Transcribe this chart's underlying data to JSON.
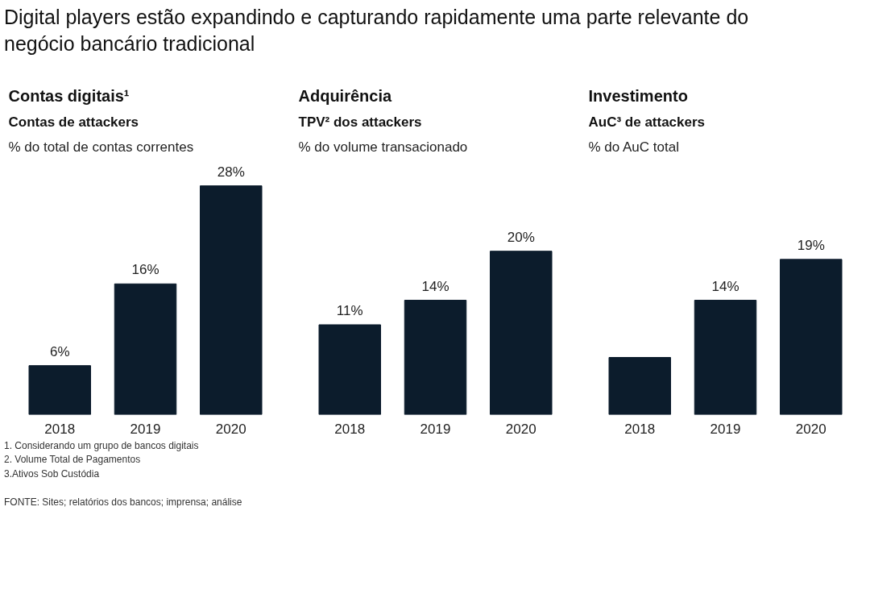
{
  "chart_data": [
    {
      "type": "bar",
      "title": "Contas digitais¹",
      "subtitle": "Contas de attackers",
      "ylabel": "% do total de contas correntes",
      "categories": [
        "2018",
        "2019",
        "2020"
      ],
      "values": [
        6,
        16,
        28
      ],
      "value_labels": [
        "6%",
        "16%",
        "28%"
      ],
      "color": "#0c1c2c",
      "grid": false,
      "annotations": [
        "Digital players estão expandindo e capturando rapidamente uma parte relevante do negócio bancário tradicional"
      ]
    },
    {
      "type": "bar",
      "title": "Adquirência",
      "subtitle": "TPV² dos attackers",
      "ylabel": "% do volume transacionado",
      "categories": [
        "2018",
        "2019",
        "2020"
      ],
      "values": [
        11,
        14,
        20
      ],
      "value_labels": [
        "11%",
        "14%",
        "20%"
      ],
      "color": "#0c1c2c",
      "grid": false
    },
    {
      "type": "bar",
      "title": "Investimento",
      "subtitle": "AuC³ de attackers",
      "ylabel": "% do AuC total",
      "categories": [
        "2018",
        "2019",
        "2020"
      ],
      "values": [
        7,
        14,
        19
      ],
      "value_labels": [
        null,
        "14%",
        "19%"
      ],
      "color": "#0c1c2c",
      "grid": false,
      "annotations": [
        "1. Considerando um grupo de bancos digitais",
        "2. Volume Total de Pagamentos",
        "3.Ativos Sob Custódia",
        "FONTE: Sites; relatórios dos bancos; imprensa; análise"
      ]
    }
  ]
}
